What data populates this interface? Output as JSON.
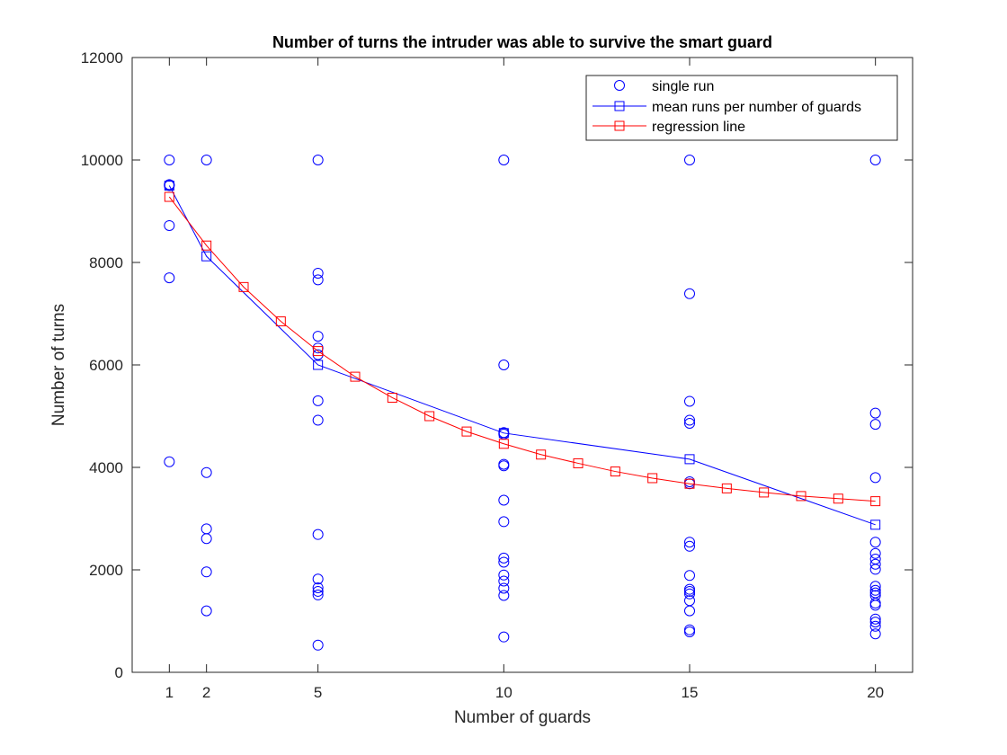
{
  "chart_data": {
    "type": "scatter",
    "title": "Number of turns the intruder was able to survive the smart guard",
    "xlabel": "Number of guards",
    "ylabel": "Number of turns",
    "xlim": [
      0,
      21
    ],
    "ylim": [
      0,
      12000
    ],
    "xticks": [
      1,
      2,
      5,
      10,
      15,
      20
    ],
    "yticks": [
      0,
      2000,
      4000,
      6000,
      8000,
      10000,
      12000
    ],
    "legend_position": "top-right",
    "colors": {
      "single": "#0000ff",
      "mean": "#0000ff",
      "regression": "#ff0000"
    },
    "series": [
      {
        "name": "single run",
        "kind": "scatter",
        "marker": "circle",
        "points": [
          [
            1,
            10000
          ],
          [
            1,
            9520
          ],
          [
            1,
            9500
          ],
          [
            1,
            8720
          ],
          [
            1,
            7700
          ],
          [
            1,
            4110
          ],
          [
            2,
            10000
          ],
          [
            2,
            3900
          ],
          [
            2,
            2800
          ],
          [
            2,
            2610
          ],
          [
            2,
            1960
          ],
          [
            2,
            1200
          ],
          [
            5,
            10000
          ],
          [
            5,
            7790
          ],
          [
            5,
            7660
          ],
          [
            5,
            6560
          ],
          [
            5,
            6330
          ],
          [
            5,
            6200
          ],
          [
            5,
            5300
          ],
          [
            5,
            4920
          ],
          [
            5,
            2690
          ],
          [
            5,
            1820
          ],
          [
            5,
            1650
          ],
          [
            5,
            1580
          ],
          [
            5,
            1510
          ],
          [
            5,
            530
          ],
          [
            10,
            10000
          ],
          [
            10,
            6000
          ],
          [
            10,
            4680
          ],
          [
            10,
            4650
          ],
          [
            10,
            4060
          ],
          [
            10,
            4030
          ],
          [
            10,
            3360
          ],
          [
            10,
            2940
          ],
          [
            10,
            2230
          ],
          [
            10,
            2150
          ],
          [
            10,
            1900
          ],
          [
            10,
            1780
          ],
          [
            10,
            1640
          ],
          [
            10,
            1500
          ],
          [
            10,
            690
          ],
          [
            15,
            10000
          ],
          [
            15,
            7390
          ],
          [
            15,
            5290
          ],
          [
            15,
            4920
          ],
          [
            15,
            4860
          ],
          [
            15,
            3720
          ],
          [
            15,
            3680
          ],
          [
            15,
            2540
          ],
          [
            15,
            2460
          ],
          [
            15,
            1890
          ],
          [
            15,
            1620
          ],
          [
            15,
            1580
          ],
          [
            15,
            1530
          ],
          [
            15,
            1400
          ],
          [
            15,
            1200
          ],
          [
            15,
            830
          ],
          [
            15,
            790
          ],
          [
            20,
            10000
          ],
          [
            20,
            5060
          ],
          [
            20,
            4840
          ],
          [
            20,
            3800
          ],
          [
            20,
            2540
          ],
          [
            20,
            2320
          ],
          [
            20,
            2210
          ],
          [
            20,
            2110
          ],
          [
            20,
            2010
          ],
          [
            20,
            1680
          ],
          [
            20,
            1600
          ],
          [
            20,
            1550
          ],
          [
            20,
            1500
          ],
          [
            20,
            1350
          ],
          [
            20,
            1310
          ],
          [
            20,
            1040
          ],
          [
            20,
            980
          ],
          [
            20,
            900
          ],
          [
            20,
            750
          ]
        ]
      },
      {
        "name": "mean runs per number of guards",
        "kind": "line",
        "marker": "square",
        "x": [
          1,
          2,
          5,
          10,
          15,
          20
        ],
        "y": [
          9500,
          8120,
          6000,
          4670,
          4160,
          2880
        ]
      },
      {
        "name": "regression line",
        "kind": "line",
        "marker": "square",
        "x": [
          1,
          2,
          3,
          4,
          5,
          6,
          7,
          8,
          9,
          10,
          11,
          12,
          13,
          14,
          15,
          16,
          17,
          18,
          19,
          20
        ],
        "y": [
          9280,
          8330,
          7520,
          6850,
          6270,
          5770,
          5360,
          5000,
          4700,
          4460,
          4250,
          4080,
          3920,
          3790,
          3680,
          3590,
          3510,
          3440,
          3390,
          3340
        ]
      }
    ]
  }
}
